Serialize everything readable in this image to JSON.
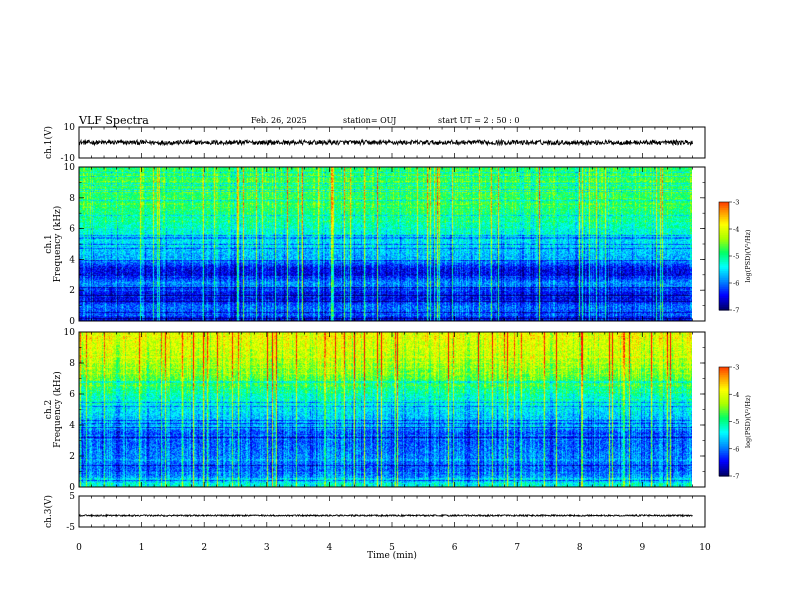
{
  "header": {
    "title": "VLF Spectra",
    "date": "Feb. 26, 2025",
    "station": "station= OUJ",
    "start": "start  UT =   2 : 50 : 0"
  },
  "chart_data": {
    "type": "heatmap",
    "x": {
      "label": "Time  (min)",
      "range": [
        0,
        10
      ],
      "ticks": [
        "0",
        "1",
        "2",
        "3",
        "4",
        "5",
        "6",
        "7",
        "8",
        "9",
        "10"
      ],
      "data_extent_min": 9.8
    },
    "panels": [
      {
        "id": "ch1-waveform",
        "type": "line",
        "ylabel": "ch.1(V)",
        "ylim": [
          -10,
          10
        ],
        "ytick_labels": [
          "10",
          "-10"
        ],
        "trace_center": 0,
        "trace_amplitude": 1.5,
        "trace_color": "#000000"
      },
      {
        "id": "ch1-spectrogram",
        "type": "heatmap",
        "ylabel_lines": [
          "ch.1",
          "Frequency  (kHz)"
        ],
        "ylim": [
          0,
          10
        ],
        "ytick_labels": [
          "0",
          "2",
          "4",
          "6",
          "8",
          "10"
        ],
        "spectrum_profile": [
          [
            0,
            0.05
          ],
          [
            0.5,
            0.2
          ],
          [
            1,
            0.22
          ],
          [
            1.5,
            0.1
          ],
          [
            2,
            0.14
          ],
          [
            2.5,
            0.26
          ],
          [
            3,
            0.1
          ],
          [
            3.5,
            0.12
          ],
          [
            4,
            0.28
          ],
          [
            5,
            0.33
          ],
          [
            6,
            0.4
          ],
          [
            7,
            0.48
          ],
          [
            8,
            0.5
          ],
          [
            9,
            0.52
          ],
          [
            10,
            0.5
          ]
        ],
        "colorbar": {
          "label": "log(PSD)(V²/Hz)",
          "range": [
            -7,
            -3
          ],
          "tick_labels": [
            "-3",
            "-4",
            "-5",
            "-6",
            "-7"
          ]
        }
      },
      {
        "id": "ch2-spectrogram",
        "type": "heatmap",
        "ylabel_lines": [
          "ch.2",
          "Frequency  (kHz)"
        ],
        "ylim": [
          0,
          10
        ],
        "ytick_labels": [
          "0",
          "2",
          "4",
          "6",
          "8",
          "10"
        ],
        "spectrum_profile": [
          [
            0,
            0.42
          ],
          [
            0.5,
            0.3
          ],
          [
            1,
            0.2
          ],
          [
            2,
            0.24
          ],
          [
            3,
            0.2
          ],
          [
            3.5,
            0.18
          ],
          [
            4,
            0.28
          ],
          [
            5,
            0.34
          ],
          [
            6,
            0.42
          ],
          [
            7,
            0.55
          ],
          [
            8,
            0.62
          ],
          [
            9,
            0.68
          ],
          [
            10,
            0.7
          ]
        ],
        "colorbar": {
          "label": "log(PSD)(V²/Hz)",
          "range": [
            -7,
            -3
          ],
          "tick_labels": [
            "-3",
            "-4",
            "-5",
            "-6",
            "-7"
          ]
        }
      },
      {
        "id": "ch3-waveform",
        "type": "line",
        "ylabel": "ch.3(V)",
        "ylim": [
          -5,
          5
        ],
        "ytick_labels": [
          "5",
          "-5"
        ],
        "trace_center": -1.3,
        "trace_amplitude": 0.25,
        "trace_color": "#000000"
      }
    ],
    "colormap": [
      "#000066",
      "#0000ff",
      "#0088ff",
      "#00ffff",
      "#00ff66",
      "#aaff00",
      "#ffff00",
      "#ff8800",
      "#ff0000",
      "#ffffff"
    ]
  }
}
